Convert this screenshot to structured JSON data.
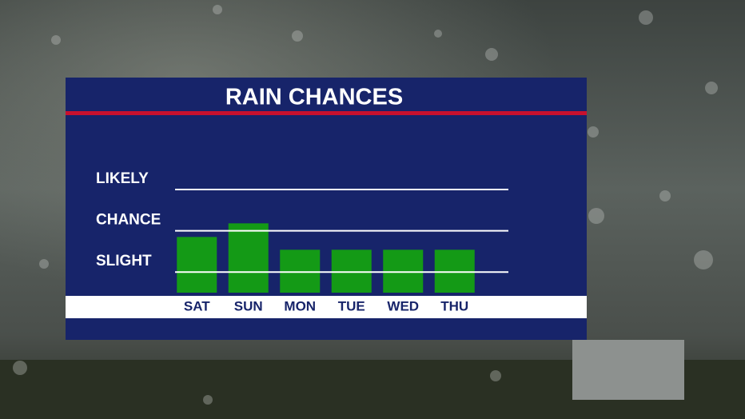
{
  "chart_data": {
    "type": "bar",
    "title": "RAIN CHANCES",
    "categories": [
      "SAT",
      "SUN",
      "MON",
      "TUE",
      "WED",
      "THU"
    ],
    "values": [
      1.85,
      2.18,
      1.54,
      1.54,
      1.54,
      1.54
    ],
    "color": "#149a16",
    "ylim": [
      0.5,
      3
    ],
    "yticks": [
      {
        "value": 1,
        "label": "SLIGHT"
      },
      {
        "value": 2,
        "label": "CHANCE"
      },
      {
        "value": 3,
        "label": "LIKELY"
      }
    ],
    "grid": true
  }
}
